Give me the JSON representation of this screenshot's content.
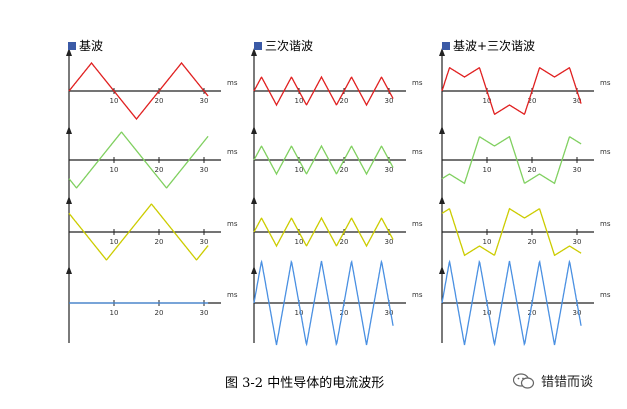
{
  "columns": [
    {
      "title": "基波"
    },
    {
      "title": "三次谐波"
    },
    {
      "title": "基波+三次谐波"
    }
  ],
  "x_ticks": [
    "10",
    "20",
    "30"
  ],
  "time_unit": "ms",
  "rows": [
    {
      "color": "#e02020",
      "phase_deg": 0
    },
    {
      "color": "#80d060",
      "phase_deg": 120
    },
    {
      "color": "#cccc00",
      "phase_deg": 240
    },
    {
      "color": "#4a90e2",
      "phase_deg": null
    }
  ],
  "caption": "图 3-2  中性导体的电流波形",
  "watermark": {
    "text": "错错而谈",
    "icon": "wechat-icon"
  }
}
